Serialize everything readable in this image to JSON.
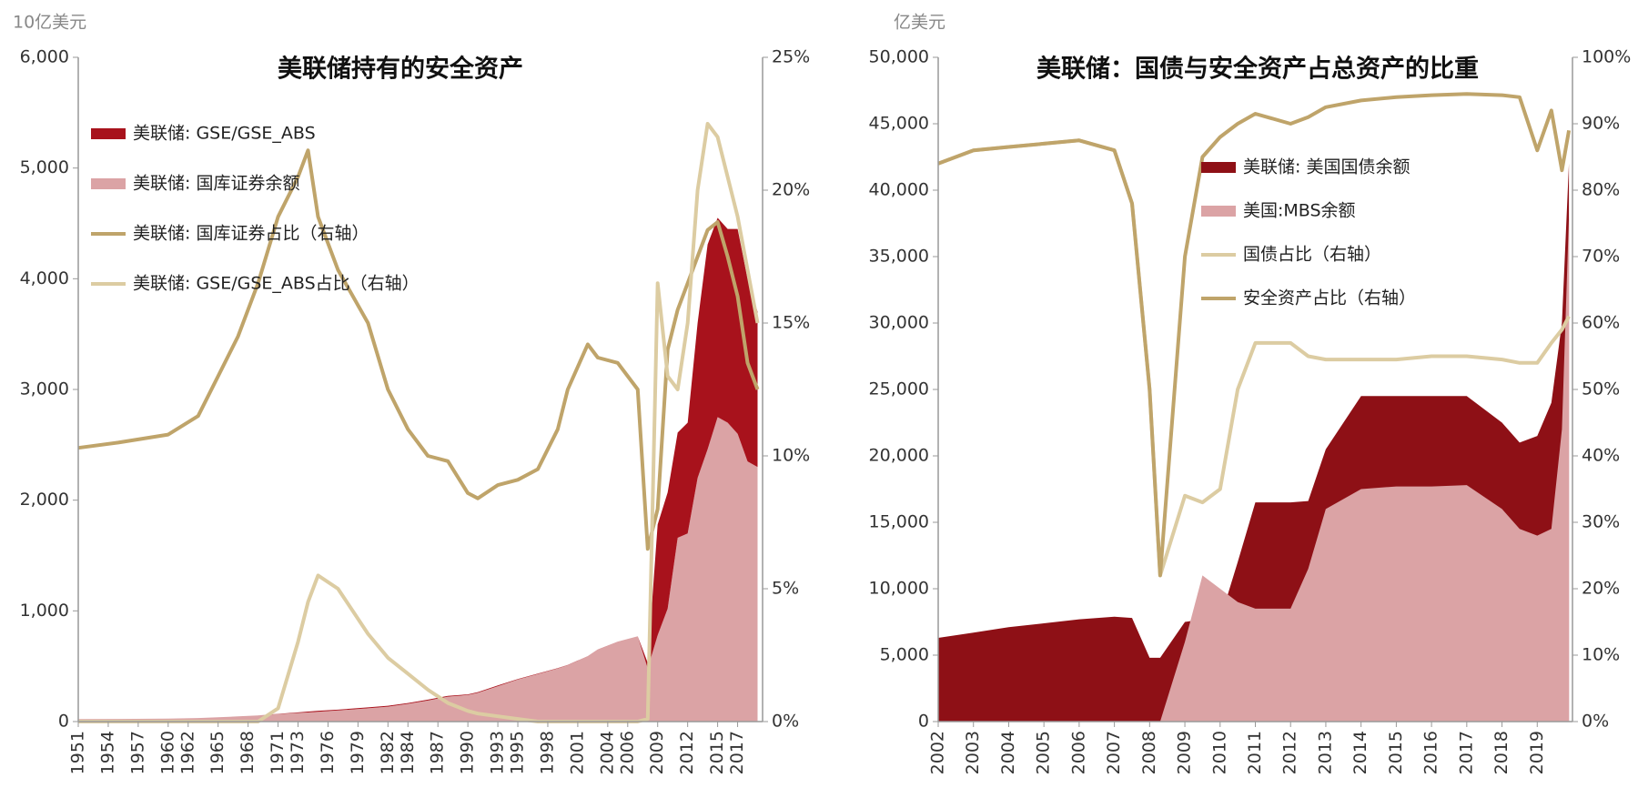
{
  "chart_data": [
    {
      "type": "combo",
      "title": "美联储持有的安全资产",
      "unit_label": "10亿美元",
      "stacked": true,
      "x": [
        1951,
        1955,
        1960,
        1963,
        1965,
        1967,
        1969,
        1971,
        1973,
        1974,
        1975,
        1977,
        1980,
        1982,
        1984,
        1986,
        1988,
        1990,
        1991,
        1993,
        1995,
        1997,
        1999,
        2000,
        2002,
        2003,
        2005,
        2007,
        2008,
        2009,
        2010,
        2011,
        2012,
        2013,
        2014,
        2015,
        2016,
        2017,
        2018,
        2019
      ],
      "xlim": [
        1951,
        2019.5
      ],
      "xticks": [
        1951,
        1954,
        1957,
        1960,
        1962,
        1965,
        1968,
        1971,
        1973,
        1976,
        1979,
        1982,
        1984,
        1987,
        1990,
        1993,
        1995,
        1998,
        2001,
        2004,
        2006,
        2009,
        2012,
        2015,
        2017
      ],
      "ylim": [
        0,
        6000
      ],
      "yticks": [
        0,
        {
          "value": 1000,
          "label": "1,000"
        },
        {
          "value": 2000,
          "label": "2,000"
        },
        {
          "value": 3000,
          "label": "3,000"
        },
        {
          "value": 4000,
          "label": "4,000"
        },
        {
          "value": 5000,
          "label": "5,000"
        },
        {
          "value": 6000,
          "label": "6,000"
        }
      ],
      "y2lim": [
        0,
        25
      ],
      "y2ticks": [
        {
          "value": 0,
          "label": "0%"
        },
        {
          "value": 5,
          "label": "5%"
        },
        {
          "value": 10,
          "label": "10%"
        },
        {
          "value": 15,
          "label": "15%"
        },
        {
          "value": 20,
          "label": "20%"
        },
        {
          "value": 25,
          "label": "25%"
        }
      ],
      "series": [
        {
          "name": "美联储: GSE/GSE_ABS",
          "kind": "area",
          "color": "#a8121c",
          "values": [
            0,
            0,
            0,
            0,
            0,
            0,
            0,
            2,
            5,
            8,
            10,
            8,
            8,
            8,
            8,
            8,
            8,
            6,
            6,
            6,
            5,
            4,
            3,
            2,
            1,
            1,
            1,
            1,
            50,
            1000,
            1050,
            950,
            1000,
            1400,
            1850,
            1800,
            1750,
            1850,
            1650,
            1400
          ]
        },
        {
          "name": "美联储: 国库证券余额",
          "kind": "area",
          "color": "#dba3a5",
          "values": [
            22,
            24,
            27,
            32,
            39,
            47,
            55,
            68,
            78,
            82,
            88,
            100,
            120,
            135,
            160,
            190,
            225,
            240,
            260,
            320,
            380,
            430,
            480,
            510,
            590,
            650,
            720,
            770,
            480,
            780,
            1020,
            1660,
            1700,
            2200,
            2460,
            2750,
            2700,
            2600,
            2350,
            2300
          ]
        },
        {
          "name": "美联储: 国库证券占比（右轴）",
          "kind": "line",
          "axis": "y2",
          "color": "#bfa46a",
          "values": [
            10.3,
            10.5,
            10.8,
            11.5,
            13,
            14.5,
            16.5,
            19,
            20.5,
            21.5,
            19,
            17,
            15,
            12.5,
            11,
            10,
            9.8,
            8.6,
            8.4,
            8.9,
            9.1,
            9.5,
            11,
            12.5,
            14.2,
            13.7,
            13.5,
            12.5,
            6.5,
            8,
            14,
            15.5,
            16.5,
            17.5,
            18.5,
            18.8,
            17.5,
            16,
            13.5,
            12.5
          ]
        },
        {
          "name": "美联储: GSE/GSE_ABS占比（右轴）",
          "kind": "line",
          "axis": "y2",
          "color": "#dccca2",
          "values": [
            0,
            0,
            0,
            0,
            0,
            0,
            0,
            0.5,
            3,
            4.5,
            5.5,
            5,
            3.3,
            2.4,
            1.8,
            1.2,
            0.7,
            0.4,
            0.3,
            0.2,
            0.1,
            0,
            0,
            0,
            0,
            0,
            0,
            0,
            0.1,
            16.5,
            13,
            12.5,
            15,
            20,
            22.5,
            22,
            20.5,
            19,
            17,
            15
          ]
        }
      ]
    },
    {
      "type": "combo",
      "title": "美联储：国债与安全资产占总资产的比重",
      "unit_label": "亿美元",
      "stacked": false,
      "x": [
        2002,
        2003,
        2004,
        2005,
        2006,
        2007,
        2007.5,
        2008,
        2008.3,
        2009,
        2009.5,
        2010,
        2010.5,
        2011,
        2012,
        2012.5,
        2013,
        2014,
        2015,
        2016,
        2017,
        2018,
        2018.5,
        2019,
        2019.4,
        2019.7,
        2019.9
      ],
      "xlim": [
        2002,
        2020
      ],
      "xticks": [
        2002,
        2003,
        2004,
        2005,
        2006,
        2007,
        2008,
        2009,
        2010,
        2011,
        2012,
        2013,
        2014,
        2015,
        2016,
        2017,
        2018,
        2019
      ],
      "ylim": [
        0,
        50000
      ],
      "yticks": [
        0,
        {
          "value": 5000,
          "label": "5,000"
        },
        {
          "value": 10000,
          "label": "10,000"
        },
        {
          "value": 15000,
          "label": "15,000"
        },
        {
          "value": 20000,
          "label": "20,000"
        },
        {
          "value": 25000,
          "label": "25,000"
        },
        {
          "value": 30000,
          "label": "30,000"
        },
        {
          "value": 35000,
          "label": "35,000"
        },
        {
          "value": 40000,
          "label": "40,000"
        },
        {
          "value": 45000,
          "label": "45,000"
        },
        {
          "value": 50000,
          "label": "50,000"
        }
      ],
      "y2lim": [
        0,
        100
      ],
      "y2ticks": [
        {
          "value": 0,
          "label": "0%"
        },
        {
          "value": 10,
          "label": "10%"
        },
        {
          "value": 20,
          "label": "20%"
        },
        {
          "value": 30,
          "label": "30%"
        },
        {
          "value": 40,
          "label": "40%"
        },
        {
          "value": 50,
          "label": "50%"
        },
        {
          "value": 60,
          "label": "60%"
        },
        {
          "value": 70,
          "label": "70%"
        },
        {
          "value": 80,
          "label": "80%"
        },
        {
          "value": 90,
          "label": "90%"
        },
        {
          "value": 100,
          "label": "100%"
        }
      ],
      "series": [
        {
          "name": "美联储: 美国国债余额",
          "kind": "area",
          "color": "#8e1016",
          "values": [
            6300,
            6700,
            7100,
            7400,
            7700,
            7900,
            7800,
            4800,
            4800,
            7500,
            7700,
            7700,
            12000,
            16500,
            16500,
            16600,
            20500,
            24500,
            24500,
            24500,
            24500,
            22500,
            21000,
            21500,
            24000,
            30000,
            42000
          ]
        },
        {
          "name": "美国:MBS余额",
          "kind": "area",
          "color": "#dba3a5",
          "values": [
            0,
            0,
            0,
            0,
            0,
            0,
            0,
            0,
            0,
            6000,
            11000,
            10000,
            9000,
            8500,
            8500,
            11500,
            16000,
            17500,
            17700,
            17700,
            17800,
            16000,
            14500,
            14000,
            14500,
            22000,
            38000
          ]
        },
        {
          "name": "国债占比（右轴）",
          "kind": "line",
          "axis": "y2",
          "color": "#dccca2",
          "values": [
            84,
            86,
            86.5,
            87,
            87.5,
            86,
            78,
            50,
            22,
            34,
            33,
            35,
            50,
            57,
            57,
            55,
            54.5,
            54.5,
            54.5,
            55,
            55,
            54.5,
            54,
            54,
            57,
            59,
            61
          ]
        },
        {
          "name": "安全资产占比（右轴）",
          "kind": "line",
          "axis": "y2",
          "color": "#bfa46a",
          "values": [
            84,
            86,
            86.5,
            87,
            87.5,
            86,
            78,
            50,
            22,
            70,
            85,
            88,
            90,
            91.5,
            90,
            91,
            92.5,
            93.5,
            94,
            94.3,
            94.5,
            94.3,
            94,
            86,
            92,
            83,
            89
          ]
        }
      ]
    }
  ]
}
